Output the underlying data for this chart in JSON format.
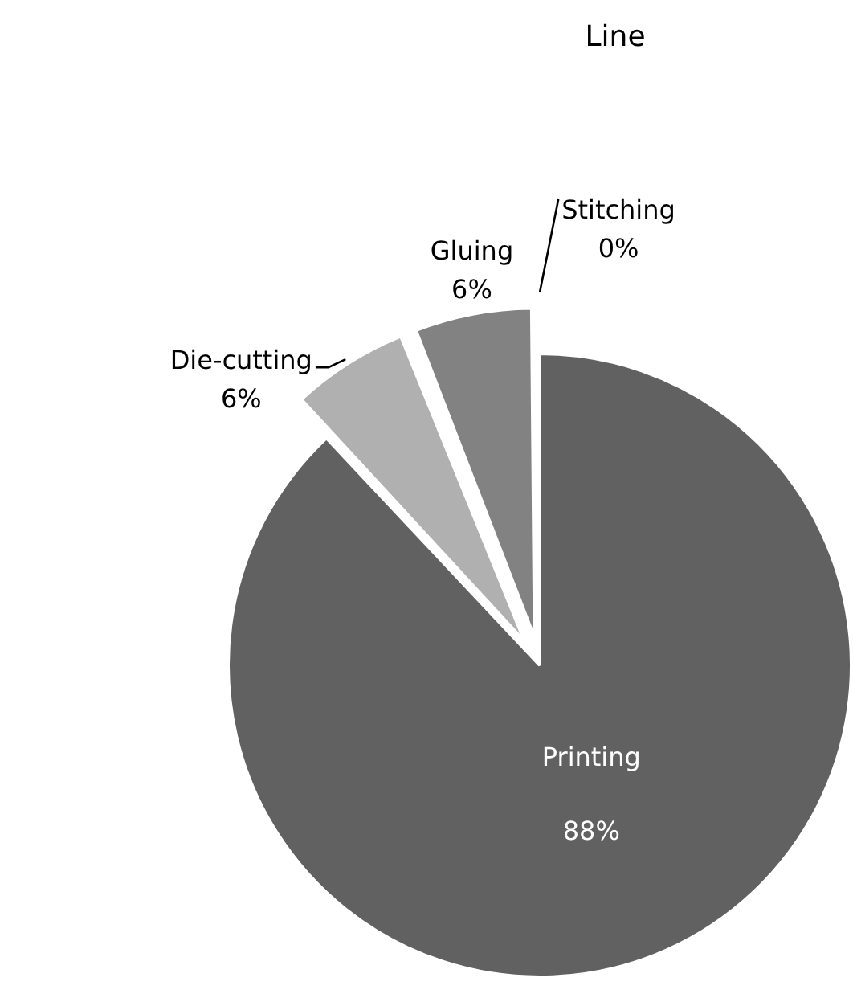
{
  "chart_data": {
    "type": "pie",
    "title": "Line",
    "categories": [
      "Printing",
      "Die-cutting",
      "Gluing",
      "Stitching"
    ],
    "values": [
      88,
      6,
      6,
      0
    ],
    "colors": [
      "#616161",
      "#b0b0b0",
      "#828282",
      "#d4d4d4"
    ],
    "value_labels": [
      "88%",
      "6%",
      "6%",
      "0%"
    ]
  }
}
